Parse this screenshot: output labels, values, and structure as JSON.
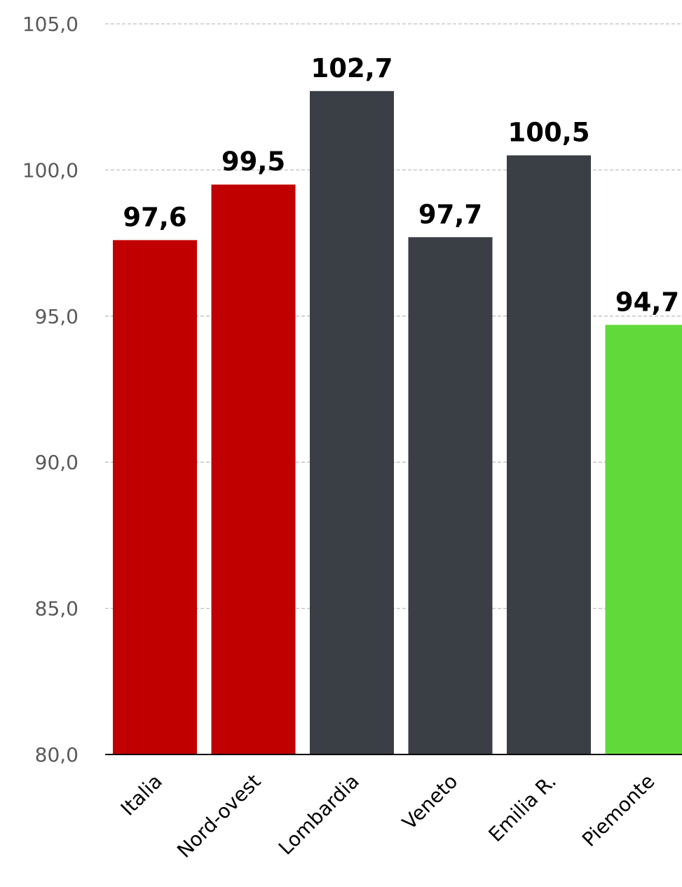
{
  "chart_data": {
    "type": "bar",
    "categories": [
      "Italia",
      "Nord-ovest",
      "Lombardia",
      "Veneto",
      "Emilia R.",
      "Piemonte"
    ],
    "values": [
      97.6,
      99.5,
      102.7,
      97.7,
      100.5,
      94.7
    ],
    "value_labels": [
      "97,6",
      "99,5",
      "102,7",
      "97,7",
      "100,5",
      "94,7"
    ],
    "bar_colors": [
      "#c00000",
      "#c00000",
      "#3a3e45",
      "#3a3e45",
      "#3a3e45",
      "#62d93b"
    ],
    "y_ticks": [
      80,
      85,
      90,
      95,
      100,
      105
    ],
    "y_tick_labels": [
      "80,0",
      "85,0",
      "90,0",
      "95,0",
      "100,0",
      "105,0"
    ],
    "ylim": [
      80,
      105
    ],
    "grid": true,
    "title": "",
    "xlabel": "",
    "ylabel": ""
  }
}
